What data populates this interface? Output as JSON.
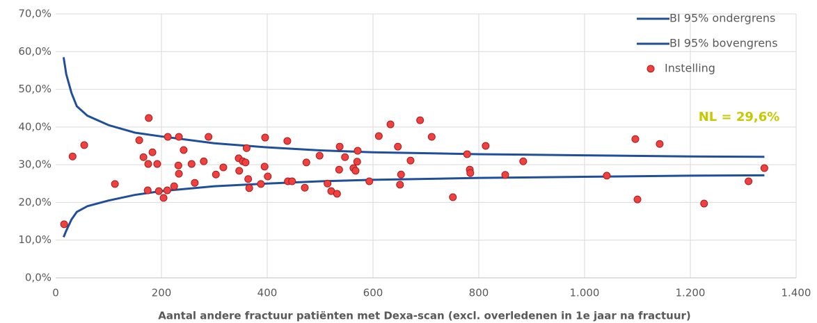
{
  "chart_data": {
    "type": "scatter",
    "xlabel": "Aantal andere fractuur patiënten met Dexa-scan (excl. overledenen in 1e jaar na fractuur)",
    "annotation": "NL = 29,6%",
    "annotation_color": "#c8c800",
    "xlim": [
      0,
      1400
    ],
    "xticks": [
      0,
      200,
      400,
      600,
      800,
      {
        "value": 1000,
        "label": "1.000"
      },
      {
        "value": 1200,
        "label": "1.200"
      },
      {
        "value": 1400,
        "label": "1.400"
      }
    ],
    "ylim": [
      0,
      70
    ],
    "yticks": [
      {
        "value": 0,
        "label": "0,0%"
      },
      {
        "value": 10,
        "label": "10,0%"
      },
      {
        "value": 20,
        "label": "20,0%"
      },
      {
        "value": 30,
        "label": "30,0%"
      },
      {
        "value": 40,
        "label": "40,0%"
      },
      {
        "value": 50,
        "label": "50,0%"
      },
      {
        "value": 60,
        "label": "60,0%"
      },
      {
        "value": 70,
        "label": "70,0%"
      }
    ],
    "grid": true,
    "legend": "top-right",
    "series": [
      {
        "name": "BI 95% ondergrens",
        "type": "line",
        "color": "#1f4e9b",
        "x": [
          15,
          20,
          30,
          40,
          60,
          100,
          150,
          200,
          300,
          400,
          500,
          600,
          800,
          1000,
          1200,
          1340
        ],
        "values": [
          10.8,
          12.5,
          15.5,
          17.5,
          19,
          20.5,
          22,
          23,
          24.3,
          25,
          25.6,
          26,
          26.5,
          26.8,
          27.1,
          27.2
        ]
      },
      {
        "name": "BI 95% bovengrens",
        "type": "line",
        "color": "#1f4e9b",
        "x": [
          15,
          20,
          30,
          40,
          60,
          100,
          150,
          200,
          300,
          400,
          500,
          600,
          800,
          1000,
          1200,
          1340
        ],
        "values": [
          58.5,
          54,
          49,
          45.5,
          43,
          40.5,
          38.5,
          37.5,
          35.7,
          34.6,
          33.8,
          33.3,
          32.8,
          32.5,
          32.2,
          32.1
        ]
      },
      {
        "name": "Instelling",
        "type": "scatter",
        "color": "#f04040",
        "x": [
          16,
          32,
          54,
          112,
          158,
          166,
          175,
          176,
          174,
          183,
          192,
          195,
          204,
          211,
          212,
          224,
          232,
          233,
          233,
          242,
          257,
          263,
          280,
          289,
          303,
          317,
          346,
          347,
          354,
          359,
          361,
          364,
          366,
          388,
          395,
          396,
          401,
          438,
          439,
          447,
          471,
          474,
          499,
          514,
          521,
          532,
          536,
          537,
          547,
          563,
          567,
          570,
          571,
          593,
          611,
          633,
          647,
          653,
          651,
          671,
          689,
          711,
          751,
          778,
          783,
          784,
          813,
          850,
          884,
          1042,
          1096,
          1100,
          1142,
          1226,
          1310,
          1340
        ],
        "values": [
          14.2,
          32.2,
          35.2,
          24.9,
          36.5,
          32.0,
          30.2,
          42.4,
          23.2,
          33.3,
          30.2,
          23.0,
          21.2,
          23.2,
          37.4,
          24.3,
          29.8,
          37.4,
          27.6,
          33.9,
          30.2,
          25.2,
          30.9,
          37.4,
          27.4,
          29.3,
          31.7,
          28.4,
          30.9,
          30.6,
          34.4,
          26.2,
          23.8,
          24.9,
          29.5,
          37.2,
          26.9,
          36.3,
          25.6,
          25.6,
          23.9,
          30.6,
          32.4,
          25.0,
          23.0,
          22.3,
          28.7,
          34.8,
          32.0,
          29.1,
          28.4,
          30.8,
          33.7,
          25.6,
          37.6,
          40.7,
          34.8,
          27.4,
          24.7,
          31.1,
          41.8,
          37.4,
          21.4,
          32.8,
          28.7,
          27.8,
          35.0,
          27.3,
          30.9,
          27.1,
          36.8,
          20.8,
          35.5,
          19.7,
          25.6,
          29.1
        ]
      }
    ]
  }
}
